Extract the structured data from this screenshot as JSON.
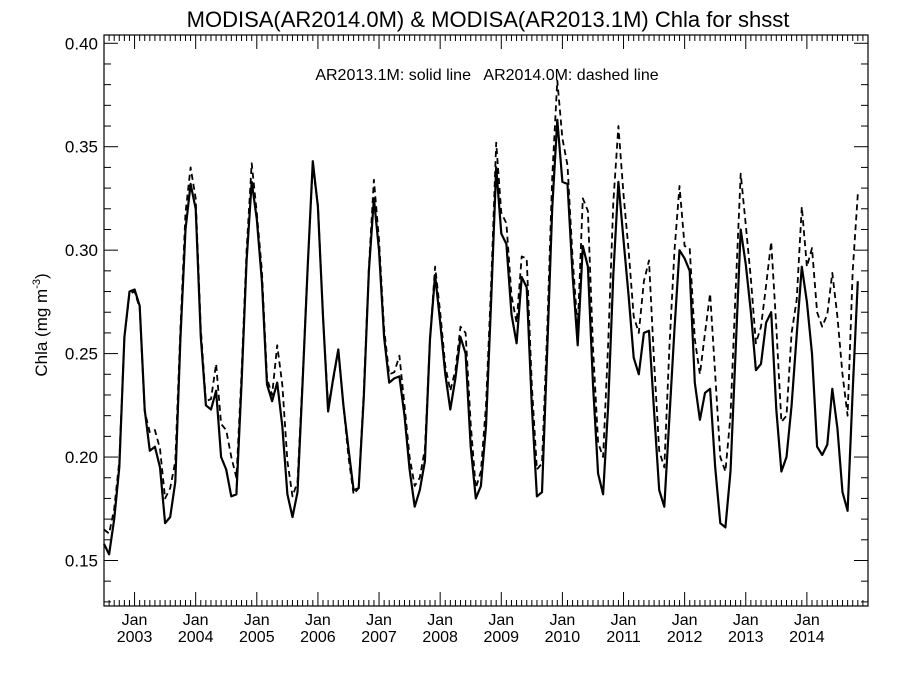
{
  "chart_data": {
    "type": "line",
    "title": "MODISA(AR2014.0M) & MODISA(AR2013.1M)  Chla for shsst",
    "annotation": "AR2013.1M: solid line   AR2014.0M: dashed line",
    "ylabel_main": "Chla (mg m",
    "ylabel_sup": "-3",
    "ylabel_close": ")",
    "xlabel": "",
    "ylim": [
      0.128,
      0.404
    ],
    "x_start": 2002.5,
    "x_end": 2015.0,
    "yticks": [
      0.15,
      0.2,
      0.25,
      0.3,
      0.35,
      0.4
    ],
    "ytick_labels": [
      "0.15",
      "0.20",
      "0.25",
      "0.30",
      "0.35",
      "0.40"
    ],
    "xtick_positions": [
      2003,
      2004,
      2005,
      2006,
      2007,
      2008,
      2009,
      2010,
      2011,
      2012,
      2013,
      2014
    ],
    "xtick_month_label": "Jan",
    "xtick_year_labels": [
      "2003",
      "2004",
      "2005",
      "2006",
      "2007",
      "2008",
      "2009",
      "2010",
      "2011",
      "2012",
      "2013",
      "2014"
    ],
    "x_first_month": "2002-07",
    "x_step": "monthly",
    "series": [
      {
        "name": "AR2013.1M",
        "style": "solid",
        "values": [
          0.158,
          0.153,
          0.17,
          0.195,
          0.258,
          0.28,
          0.281,
          0.273,
          0.223,
          0.203,
          0.205,
          0.195,
          0.168,
          0.171,
          0.188,
          0.257,
          0.31,
          0.332,
          0.32,
          0.258,
          0.225,
          0.223,
          0.232,
          0.2,
          0.194,
          0.181,
          0.182,
          0.235,
          0.295,
          0.333,
          0.315,
          0.285,
          0.235,
          0.227,
          0.236,
          0.215,
          0.182,
          0.171,
          0.183,
          0.236,
          0.292,
          0.343,
          0.321,
          0.268,
          0.222,
          0.238,
          0.252,
          0.225,
          0.204,
          0.184,
          0.185,
          0.229,
          0.29,
          0.325,
          0.3,
          0.258,
          0.236,
          0.238,
          0.239,
          0.22,
          0.194,
          0.176,
          0.184,
          0.198,
          0.257,
          0.288,
          0.265,
          0.24,
          0.223,
          0.238,
          0.258,
          0.25,
          0.205,
          0.18,
          0.186,
          0.215,
          0.275,
          0.34,
          0.308,
          0.303,
          0.269,
          0.255,
          0.287,
          0.282,
          0.225,
          0.181,
          0.183,
          0.25,
          0.32,
          0.363,
          0.333,
          0.332,
          0.288,
          0.254,
          0.302,
          0.292,
          0.235,
          0.192,
          0.182,
          0.225,
          0.288,
          0.333,
          0.305,
          0.278,
          0.248,
          0.24,
          0.26,
          0.261,
          0.222,
          0.184,
          0.176,
          0.219,
          0.262,
          0.3,
          0.296,
          0.29,
          0.236,
          0.218,
          0.231,
          0.233,
          0.195,
          0.168,
          0.166,
          0.193,
          0.251,
          0.31,
          0.293,
          0.27,
          0.242,
          0.245,
          0.265,
          0.27,
          0.223,
          0.193,
          0.2,
          0.225,
          0.259,
          0.292,
          0.275,
          0.25,
          0.205,
          0.201,
          0.206,
          0.233,
          0.214,
          0.183,
          0.174,
          0.232,
          0.285
        ]
      },
      {
        "name": "AR2014.0M",
        "style": "dashed",
        "values": [
          0.165,
          0.163,
          0.175,
          0.198,
          0.258,
          0.279,
          0.28,
          0.272,
          0.222,
          0.212,
          0.213,
          0.204,
          0.18,
          0.185,
          0.198,
          0.262,
          0.318,
          0.34,
          0.325,
          0.262,
          0.227,
          0.228,
          0.245,
          0.216,
          0.213,
          0.2,
          0.19,
          0.24,
          0.3,
          0.342,
          0.318,
          0.29,
          0.238,
          0.23,
          0.254,
          0.235,
          0.198,
          0.181,
          0.188,
          0.238,
          0.292,
          0.34,
          0.322,
          0.268,
          0.225,
          0.237,
          0.252,
          0.225,
          0.2,
          0.182,
          0.185,
          0.232,
          0.292,
          0.334,
          0.305,
          0.262,
          0.24,
          0.241,
          0.249,
          0.225,
          0.2,
          0.186,
          0.19,
          0.204,
          0.257,
          0.292,
          0.27,
          0.244,
          0.232,
          0.242,
          0.263,
          0.26,
          0.216,
          0.185,
          0.193,
          0.225,
          0.283,
          0.352,
          0.318,
          0.313,
          0.278,
          0.265,
          0.297,
          0.296,
          0.235,
          0.194,
          0.197,
          0.26,
          0.335,
          0.382,
          0.354,
          0.341,
          0.296,
          0.262,
          0.325,
          0.319,
          0.253,
          0.207,
          0.2,
          0.255,
          0.323,
          0.36,
          0.327,
          0.3,
          0.268,
          0.26,
          0.285,
          0.295,
          0.246,
          0.203,
          0.195,
          0.253,
          0.3,
          0.331,
          0.302,
          0.301,
          0.257,
          0.24,
          0.26,
          0.279,
          0.24,
          0.2,
          0.193,
          0.22,
          0.28,
          0.337,
          0.312,
          0.286,
          0.255,
          0.263,
          0.283,
          0.304,
          0.263,
          0.217,
          0.22,
          0.26,
          0.276,
          0.321,
          0.292,
          0.301,
          0.27,
          0.263,
          0.269,
          0.289,
          0.268,
          0.24,
          0.22,
          0.29,
          0.327
        ]
      }
    ]
  }
}
